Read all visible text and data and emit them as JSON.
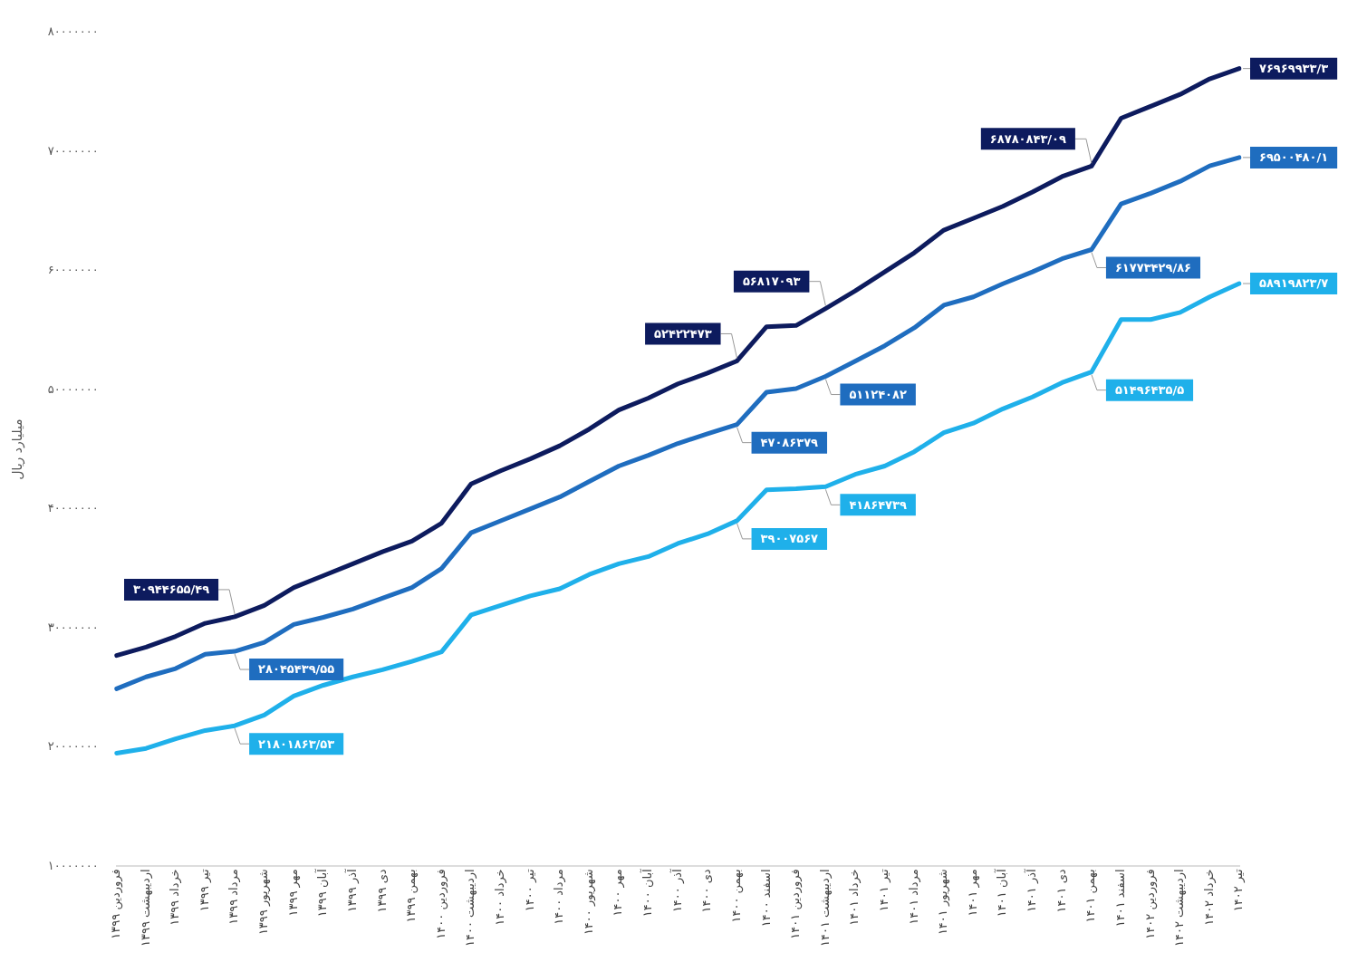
{
  "chart_data": {
    "type": "line",
    "ylabel": "میلیارد ریال",
    "categories": [
      "فروردین ۱۳۹۹",
      "اردیبهشت ۱۳۹۹",
      "خرداد ۱۳۹۹",
      "تیر ۱۳۹۹",
      "مرداد ۱۳۹۹",
      "شهریور ۱۳۹۹",
      "مهر ۱۳۹۹",
      "آبان ۱۳۹۹",
      "آذر ۱۳۹۹",
      "دی ۱۳۹۹",
      "بهمن ۱۳۹۹",
      "فروردین ۱۴۰۰",
      "اردیبهشت ۱۴۰۰",
      "خرداد ۱۴۰۰",
      "تیر ۱۴۰۰",
      "مرداد ۱۴۰۰",
      "شهریور ۱۴۰۰",
      "مهر ۱۴۰۰",
      "آبان ۱۴۰۰",
      "آذر ۱۴۰۰",
      "دی ۱۴۰۰",
      "بهمن ۱۴۰۰",
      "اسفند ۱۴۰۰",
      "فروردین ۱۴۰۱",
      "اردیبهشت ۱۴۰۱",
      "خرداد ۱۴۰۱",
      "تیر ۱۴۰۱",
      "مرداد ۱۴۰۱",
      "شهریور ۱۴۰۱",
      "مهر ۱۴۰۱",
      "آبان ۱۴۰۱",
      "آذر ۱۴۰۱",
      "دی ۱۴۰۱",
      "بهمن ۱۴۰۱",
      "اسفند ۱۴۰۱",
      "فروردین ۱۴۰۲",
      "اردیبهشت ۱۴۰۲",
      "خرداد ۱۴۰۲",
      "تیر ۱۴۰۲"
    ],
    "series": [
      {
        "color": "#0d1b5e",
        "values": [
          27700000,
          28400000,
          29300000,
          30400000,
          30944655.49,
          31900000,
          33400000,
          34400000,
          35400000,
          36400000,
          37300000,
          38800000,
          42100000,
          43200000,
          44200000,
          45300000,
          46700000,
          48300000,
          49300000,
          50500000,
          51400000,
          52422473,
          55300000,
          55400000,
          56817093,
          58300000,
          59900000,
          61500000,
          63400000,
          64400000,
          65400000,
          66600000,
          67900000,
          68780843.09,
          72800000,
          73800000,
          74800000,
          76100000,
          76969933.3
        ],
        "value_labels": [
          null,
          null,
          null,
          null,
          "۳۰۹۴۴۶۵۵/۴۹",
          null,
          null,
          null,
          null,
          null,
          null,
          null,
          null,
          null,
          null,
          null,
          null,
          null,
          null,
          null,
          null,
          "۵۲۴۲۲۴۷۳",
          null,
          null,
          "۵۶۸۱۷۰۹۳",
          null,
          null,
          null,
          null,
          null,
          null,
          null,
          null,
          "۶۸۷۸۰۸۴۳/۰۹",
          null,
          null,
          null,
          null,
          "۷۶۹۶۹۹۳۳/۳"
        ]
      },
      {
        "color": "#1f6dbf",
        "values": [
          24900000,
          25900000,
          26600000,
          27800000,
          28045439.55,
          28800000,
          30300000,
          30900000,
          31600000,
          32500000,
          33400000,
          35000000,
          38000000,
          39000000,
          40000000,
          41000000,
          42300000,
          43600000,
          44500000,
          45500000,
          46300000,
          47086379,
          49800000,
          50100000,
          51124082,
          52400000,
          53700000,
          55200000,
          57100000,
          57800000,
          58900000,
          59900000,
          61000000,
          61773429.86,
          65600000,
          66500000,
          67500000,
          68800000,
          69500480.1
        ],
        "value_labels": [
          null,
          null,
          null,
          null,
          "۲۸۰۴۵۴۳۹/۵۵",
          null,
          null,
          null,
          null,
          null,
          null,
          null,
          null,
          null,
          null,
          null,
          null,
          null,
          null,
          null,
          null,
          "۴۷۰۸۶۳۷۹",
          null,
          null,
          "۵۱۱۲۴۰۸۲",
          null,
          null,
          null,
          null,
          null,
          null,
          null,
          null,
          "۶۱۷۷۳۴۲۹/۸۶",
          null,
          null,
          null,
          null,
          "۶۹۵۰۰۴۸۰/۱"
        ]
      },
      {
        "color": "#1fb0ea",
        "values": [
          19500000,
          19900000,
          20700000,
          21400000,
          21801863.53,
          22700000,
          24300000,
          25200000,
          25900000,
          26500000,
          27200000,
          28000000,
          31100000,
          31900000,
          32700000,
          33300000,
          34500000,
          35400000,
          36000000,
          37100000,
          37900000,
          39007567,
          41600000,
          41700000,
          41864739,
          42900000,
          43600000,
          44800000,
          46400000,
          47200000,
          48400000,
          49400000,
          50600000,
          51496435.5,
          55900000,
          55900000,
          56500000,
          57800000,
          58919823.7
        ],
        "value_labels": [
          null,
          null,
          null,
          null,
          "۲۱۸۰۱۸۶۳/۵۳",
          null,
          null,
          null,
          null,
          null,
          null,
          null,
          null,
          null,
          null,
          null,
          null,
          null,
          null,
          null,
          null,
          "۳۹۰۰۷۵۶۷",
          null,
          null,
          "۴۱۸۶۴۷۳۹",
          null,
          null,
          null,
          null,
          null,
          null,
          null,
          null,
          "۵۱۴۹۶۴۳۵/۵",
          null,
          null,
          null,
          null,
          "۵۸۹۱۹۸۲۳/۷"
        ]
      }
    ],
    "ylim": [
      10000000,
      80000000
    ],
    "yticks": [
      {
        "value": 10000000,
        "label": "۱۰۰۰۰۰۰۰"
      },
      {
        "value": 20000000,
        "label": "۲۰۰۰۰۰۰۰"
      },
      {
        "value": 30000000,
        "label": "۳۰۰۰۰۰۰۰"
      },
      {
        "value": 40000000,
        "label": "۴۰۰۰۰۰۰۰"
      },
      {
        "value": 50000000,
        "label": "۵۰۰۰۰۰۰۰"
      },
      {
        "value": 60000000,
        "label": "۶۰۰۰۰۰۰۰"
      },
      {
        "value": 70000000,
        "label": "۷۰۰۰۰۰۰۰"
      },
      {
        "value": 80000000,
        "label": "۸۰۰۰۰۰۰۰"
      }
    ],
    "grid": false,
    "legend": false,
    "marker": "none",
    "line_style": "solid"
  }
}
